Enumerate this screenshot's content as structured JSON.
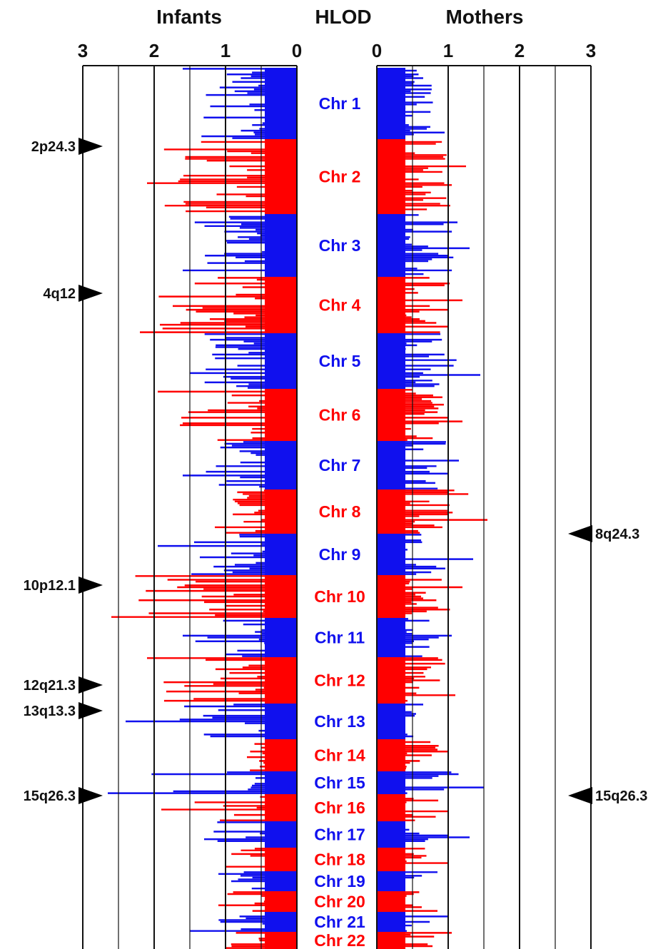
{
  "chart_data": {
    "type": "bar",
    "orientation": "horizontal-mirrored",
    "title_left": "Infants",
    "title_center": "HLOD",
    "title_right": "Mothers",
    "left_axis": {
      "ticks": [
        "3",
        "2",
        "1",
        "0"
      ],
      "values": [
        3,
        2,
        1,
        0
      ],
      "range": [
        0,
        3
      ]
    },
    "right_axis": {
      "ticks": [
        "0",
        "1",
        "2",
        "3"
      ],
      "values": [
        0,
        1,
        2,
        3
      ],
      "range": [
        0,
        3
      ]
    },
    "grid": true,
    "colors": {
      "odd": "#1010ee",
      "even": "#ff0000",
      "axis": "#111111"
    },
    "chromosomes": [
      {
        "label": "Chr 1",
        "n": 1,
        "infants_peak": 1.6,
        "mothers_peak": 0.95
      },
      {
        "label": "Chr 2",
        "n": 2,
        "infants_peak": 2.1,
        "mothers_peak": 1.25
      },
      {
        "label": "Chr 3",
        "n": 3,
        "infants_peak": 1.6,
        "mothers_peak": 1.3
      },
      {
        "label": "Chr 4",
        "n": 4,
        "infants_peak": 2.2,
        "mothers_peak": 1.2
      },
      {
        "label": "Chr 5",
        "n": 5,
        "infants_peak": 1.5,
        "mothers_peak": 1.45
      },
      {
        "label": "Chr 6",
        "n": 6,
        "infants_peak": 1.95,
        "mothers_peak": 1.2
      },
      {
        "label": "Chr 7",
        "n": 7,
        "infants_peak": 1.6,
        "mothers_peak": 1.15
      },
      {
        "label": "Chr 8",
        "n": 8,
        "infants_peak": 1.15,
        "mothers_peak": 1.55
      },
      {
        "label": "Chr 9",
        "n": 9,
        "infants_peak": 1.95,
        "mothers_peak": 1.35
      },
      {
        "label": "Chr 10",
        "n": 10,
        "infants_peak": 2.6,
        "mothers_peak": 1.2
      },
      {
        "label": "Chr 11",
        "n": 11,
        "infants_peak": 1.6,
        "mothers_peak": 1.05
      },
      {
        "label": "Chr 12",
        "n": 12,
        "infants_peak": 2.1,
        "mothers_peak": 1.1
      },
      {
        "label": "Chr 13",
        "n": 13,
        "infants_peak": 2.4,
        "mothers_peak": 0.65
      },
      {
        "label": "Chr 14",
        "n": 14,
        "infants_peak": 0.7,
        "mothers_peak": 1.0
      },
      {
        "label": "Chr 15",
        "n": 15,
        "infants_peak": 2.65,
        "mothers_peak": 1.5
      },
      {
        "label": "Chr 16",
        "n": 16,
        "infants_peak": 1.9,
        "mothers_peak": 1.0
      },
      {
        "label": "Chr 17",
        "n": 17,
        "infants_peak": 1.3,
        "mothers_peak": 1.3
      },
      {
        "label": "Chr 18",
        "n": 18,
        "infants_peak": 1.0,
        "mothers_peak": 1.0
      },
      {
        "label": "Chr 19",
        "n": 19,
        "infants_peak": 1.1,
        "mothers_peak": 0.85
      },
      {
        "label": "Chr 20",
        "n": 20,
        "infants_peak": 1.1,
        "mothers_peak": 0.85
      },
      {
        "label": "Chr 21",
        "n": 21,
        "infants_peak": 1.5,
        "mothers_peak": 1.0
      },
      {
        "label": "Chr 22",
        "n": 22,
        "infants_peak": 1.0,
        "mothers_peak": 1.05
      }
    ],
    "markers_left": [
      {
        "label": "2p24.3",
        "chromosome": 2
      },
      {
        "label": "4q12",
        "chromosome": 4
      },
      {
        "label": "10p12.1",
        "chromosome": 10
      },
      {
        "label": "12q21.3",
        "chromosome": 12
      },
      {
        "label": "13q13.3",
        "chromosome": 13
      },
      {
        "label": "15q26.3",
        "chromosome": 15
      }
    ],
    "markers_right": [
      {
        "label": "8q24.3",
        "chromosome": 8
      },
      {
        "label": "15q26.3",
        "chromosome": 15
      }
    ]
  }
}
